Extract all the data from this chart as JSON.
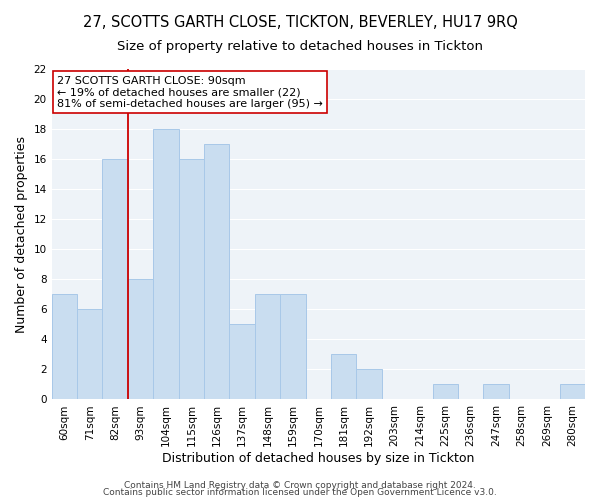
{
  "title": "27, SCOTTS GARTH CLOSE, TICKTON, BEVERLEY, HU17 9RQ",
  "subtitle": "Size of property relative to detached houses in Tickton",
  "xlabel": "Distribution of detached houses by size in Tickton",
  "ylabel": "Number of detached properties",
  "bar_labels": [
    "60sqm",
    "71sqm",
    "82sqm",
    "93sqm",
    "104sqm",
    "115sqm",
    "126sqm",
    "137sqm",
    "148sqm",
    "159sqm",
    "170sqm",
    "181sqm",
    "192sqm",
    "203sqm",
    "214sqm",
    "225sqm",
    "236sqm",
    "247sqm",
    "258sqm",
    "269sqm",
    "280sqm"
  ],
  "bar_values": [
    7,
    6,
    16,
    8,
    18,
    16,
    17,
    5,
    7,
    7,
    0,
    3,
    2,
    0,
    0,
    1,
    0,
    1,
    0,
    0,
    1
  ],
  "bar_color": "#c9ddf0",
  "bar_edge_color": "#a8c8e8",
  "plot_bg_color": "#eef3f8",
  "grid_color": "#ffffff",
  "vline_x_index": 3,
  "vline_color": "#cc0000",
  "annotation_line1": "27 SCOTTS GARTH CLOSE: 90sqm",
  "annotation_line2": "← 19% of detached houses are smaller (22)",
  "annotation_line3": "81% of semi-detached houses are larger (95) →",
  "ylim": [
    0,
    22
  ],
  "yticks": [
    0,
    2,
    4,
    6,
    8,
    10,
    12,
    14,
    16,
    18,
    20,
    22
  ],
  "footer1": "Contains HM Land Registry data © Crown copyright and database right 2024.",
  "footer2": "Contains public sector information licensed under the Open Government Licence v3.0.",
  "title_fontsize": 10.5,
  "subtitle_fontsize": 9.5,
  "axis_label_fontsize": 9,
  "tick_fontsize": 7.5,
  "annotation_fontsize": 8,
  "footer_fontsize": 6.5
}
